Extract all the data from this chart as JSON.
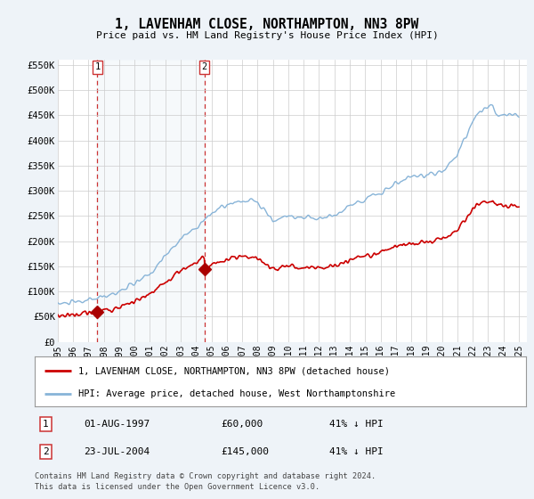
{
  "title": "1, LAVENHAM CLOSE, NORTHAMPTON, NN3 8PW",
  "subtitle": "Price paid vs. HM Land Registry's House Price Index (HPI)",
  "ylabel_ticks": [
    "£0",
    "£50K",
    "£100K",
    "£150K",
    "£200K",
    "£250K",
    "£300K",
    "£350K",
    "£400K",
    "£450K",
    "£500K",
    "£550K"
  ],
  "ytick_values": [
    0,
    50000,
    100000,
    150000,
    200000,
    250000,
    300000,
    350000,
    400000,
    450000,
    500000,
    550000
  ],
  "ylim": [
    0,
    560000
  ],
  "xlim_start": 1995.0,
  "xlim_end": 2025.5,
  "sale1_x": 1997.58,
  "sale1_y": 60000,
  "sale1_label": "1",
  "sale1_date": "01-AUG-1997",
  "sale1_price": "£60,000",
  "sale1_hpi": "41% ↓ HPI",
  "sale2_x": 2004.55,
  "sale2_y": 145000,
  "sale2_label": "2",
  "sale2_date": "23-JUL-2004",
  "sale2_price": "£145,000",
  "sale2_hpi": "41% ↓ HPI",
  "property_line_color": "#cc0000",
  "hpi_line_color": "#88b4d8",
  "property_label": "1, LAVENHAM CLOSE, NORTHAMPTON, NN3 8PW (detached house)",
  "hpi_label": "HPI: Average price, detached house, West Northamptonshire",
  "footer1": "Contains HM Land Registry data © Crown copyright and database right 2024.",
  "footer2": "This data is licensed under the Open Government Licence v3.0.",
  "background_color": "#eef3f8",
  "plot_bg": "#ffffff",
  "vline_color": "#cc3333",
  "marker_color": "#aa0000",
  "shade_color": "#dde8f3"
}
